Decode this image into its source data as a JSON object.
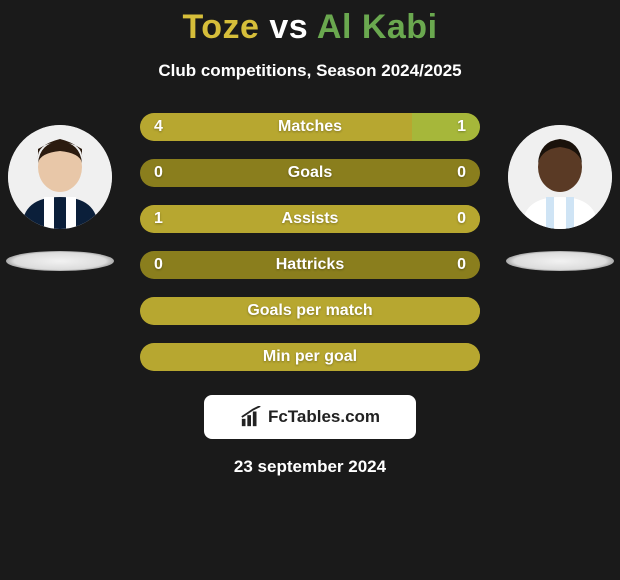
{
  "title": {
    "player1": "Toze",
    "vs": "vs",
    "player2": "Al Kabi",
    "color_player1": "#d6be3a",
    "color_vs": "#ffffff",
    "color_player2": "#6aa84f"
  },
  "subtitle": "Club competitions, Season 2024/2025",
  "background_color": "#1a1a1a",
  "stats": {
    "row_bg": "#8a7e1d",
    "fill_left_color": "#b7a730",
    "fill_right_color": "#a6b73a",
    "rows": [
      {
        "label": "Matches",
        "left": "4",
        "right": "1",
        "left_pct": 80,
        "right_pct": 20
      },
      {
        "label": "Goals",
        "left": "0",
        "right": "0",
        "left_pct": 0,
        "right_pct": 0
      },
      {
        "label": "Assists",
        "left": "1",
        "right": "0",
        "left_pct": 100,
        "right_pct": 0
      },
      {
        "label": "Hattricks",
        "left": "0",
        "right": "0",
        "left_pct": 0,
        "right_pct": 0
      },
      {
        "label": "Goals per match",
        "left": "",
        "right": "",
        "left_pct": 100,
        "right_pct": 0
      },
      {
        "label": "Min per goal",
        "left": "",
        "right": "",
        "left_pct": 100,
        "right_pct": 0
      }
    ]
  },
  "badge_text": "FcTables.com",
  "date": "23 september 2024",
  "players": {
    "left": {
      "name": "Toze",
      "skin": "#e8c7a8",
      "hair": "#2b1b0f",
      "jersey_stripes": [
        "#0b1f3a",
        "#ffffff"
      ]
    },
    "right": {
      "name": "Al Kabi",
      "skin": "#5a3a25",
      "hair": "#1a120b",
      "jersey_stripes": [
        "#ffffff",
        "#cfe4f5"
      ]
    }
  }
}
